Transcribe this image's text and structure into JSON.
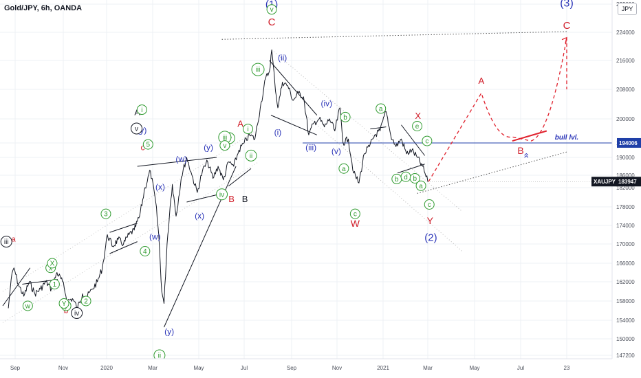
{
  "header": {
    "title": "Gold/JPY, 6h, OANDA",
    "currency": "JPY"
  },
  "chart_data": {
    "type": "line",
    "title": "Gold/JPY, 6h, OANDA",
    "ylim": [
      145000,
      232000
    ],
    "y_ticks": [
      "232000",
      "224000",
      "216000",
      "208000",
      "200000",
      "194000",
      "190000",
      "186000",
      "182000",
      "178000",
      "174000",
      "170000",
      "166000",
      "162000",
      "158000",
      "154000",
      "150000",
      "147200"
    ],
    "x_ticks": [
      "Sep",
      "Nov",
      "2020",
      "Mar",
      "May",
      "Jul",
      "Sep",
      "Nov",
      "2021",
      "Mar",
      "May",
      "Jul",
      "23"
    ],
    "price_badges": [
      {
        "label": "",
        "value": "194006",
        "color": "#1f3fa8"
      },
      {
        "label": "XAUJPY",
        "value": "183947",
        "color": "#131722"
      }
    ],
    "bull_level": {
      "label": "bull lvl.",
      "value": 194006
    },
    "series": [
      {
        "values": [
          [
            "2019-08-15",
            156500
          ],
          [
            "2019-08-22",
            162500
          ],
          [
            "2019-08-29",
            165000
          ],
          [
            "2019-09-05",
            161500
          ],
          [
            "2019-09-12",
            159000
          ],
          [
            "2019-09-19",
            162000
          ],
          [
            "2019-09-26",
            159500
          ],
          [
            "2019-10-03",
            160500
          ],
          [
            "2019-10-10",
            162000
          ],
          [
            "2019-10-17",
            160500
          ],
          [
            "2019-10-24",
            164000
          ],
          [
            "2019-10-31",
            162000
          ],
          [
            "2019-11-07",
            158000
          ],
          [
            "2019-11-14",
            158500
          ],
          [
            "2019-11-21",
            156500
          ],
          [
            "2019-11-28",
            159500
          ],
          [
            "2019-12-05",
            159000
          ],
          [
            "2019-12-12",
            160500
          ],
          [
            "2019-12-19",
            162000
          ],
          [
            "2019-12-26",
            165000
          ],
          [
            "2020-01-02",
            172000
          ],
          [
            "2020-01-09",
            169500
          ],
          [
            "2020-01-16",
            171000
          ],
          [
            "2020-01-23",
            170000
          ],
          [
            "2020-01-30",
            172000
          ],
          [
            "2020-02-06",
            173000
          ],
          [
            "2020-02-13",
            176000
          ],
          [
            "2020-02-20",
            182000
          ],
          [
            "2020-02-27",
            187000
          ],
          [
            "2020-03-05",
            179000
          ],
          [
            "2020-03-09",
            172000
          ],
          [
            "2020-03-13",
            160000
          ],
          [
            "2020-03-16",
            157500
          ],
          [
            "2020-03-20",
            170000
          ],
          [
            "2020-03-24",
            178000
          ],
          [
            "2020-03-27",
            183000
          ],
          [
            "2020-04-01",
            176000
          ],
          [
            "2020-04-08",
            185500
          ],
          [
            "2020-04-15",
            190000
          ],
          [
            "2020-04-22",
            186000
          ],
          [
            "2020-04-29",
            181000
          ],
          [
            "2020-05-06",
            187000
          ],
          [
            "2020-05-13",
            189000
          ],
          [
            "2020-05-20",
            185000
          ],
          [
            "2020-05-27",
            188000
          ],
          [
            "2020-06-03",
            184500
          ],
          [
            "2020-06-10",
            189000
          ],
          [
            "2020-06-17",
            188000
          ],
          [
            "2020-06-24",
            192000
          ],
          [
            "2020-07-01",
            194000
          ],
          [
            "2020-07-08",
            196000
          ],
          [
            "2020-07-15",
            195000
          ],
          [
            "2020-07-22",
            203000
          ],
          [
            "2020-07-29",
            211000
          ],
          [
            "2020-08-03",
            213000
          ],
          [
            "2020-08-06",
            219000
          ],
          [
            "2020-08-10",
            210000
          ],
          [
            "2020-08-14",
            203000
          ],
          [
            "2020-08-20",
            210000
          ],
          [
            "2020-08-27",
            209000
          ],
          [
            "2020-09-03",
            205000
          ],
          [
            "2020-09-10",
            207000
          ],
          [
            "2020-09-17",
            206000
          ],
          [
            "2020-09-24",
            196000
          ],
          [
            "2020-10-01",
            199000
          ],
          [
            "2020-10-08",
            200000
          ],
          [
            "2020-10-15",
            198000
          ],
          [
            "2020-10-22",
            200000
          ],
          [
            "2020-10-29",
            197000
          ],
          [
            "2020-11-05",
            203000
          ],
          [
            "2020-11-09",
            194000
          ],
          [
            "2020-11-16",
            195000
          ],
          [
            "2020-11-23",
            186500
          ],
          [
            "2020-11-30",
            183500
          ],
          [
            "2020-12-07",
            191000
          ],
          [
            "2020-12-14",
            193000
          ],
          [
            "2020-12-21",
            196000
          ],
          [
            "2020-12-28",
            197000
          ],
          [
            "2021-01-05",
            202000
          ],
          [
            "2021-01-11",
            196000
          ],
          [
            "2021-01-18",
            193000
          ],
          [
            "2021-01-25",
            195000
          ],
          [
            "2021-02-01",
            191000
          ],
          [
            "2021-02-08",
            192000
          ],
          [
            "2021-02-15",
            190000
          ],
          [
            "2021-02-22",
            188000
          ],
          [
            "2021-03-01",
            183947
          ]
        ]
      }
    ],
    "wave_labels_red": [
      "a",
      "b",
      "c",
      "A",
      "B",
      "C",
      "X",
      "W",
      "Y",
      "A",
      "B",
      "C"
    ],
    "wave_labels_black": [
      "A",
      "B"
    ],
    "wave_labels_blue": [
      "(1)",
      "(2)",
      "(3)",
      "(w)",
      "(x)",
      "(w)",
      "(x)",
      "(y)",
      "(y)",
      "(y)",
      "(i)",
      "(ii)",
      "(iii)",
      "(iv)",
      "(v)"
    ],
    "wave_labels_green": [
      "i",
      "ii",
      "iii",
      "iv",
      "v",
      "i",
      "ii",
      "iii",
      "iv",
      "v",
      "a",
      "b",
      "c",
      "a",
      "b",
      "c",
      "d",
      "e",
      "a",
      "b",
      "c",
      "w",
      "x",
      "y",
      "1",
      "2",
      "3",
      "4",
      "5",
      "X",
      "Y"
    ],
    "wave_labels_circled_black": [
      "iii",
      "iv",
      "v"
    ]
  }
}
